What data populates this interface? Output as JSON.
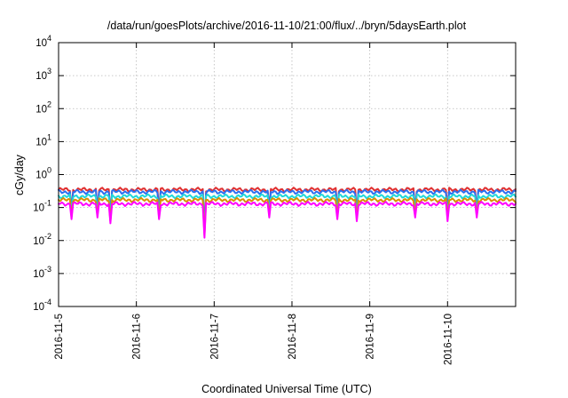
{
  "chart_data": {
    "type": "line",
    "title": "/data/run/goesPlots/archive/2016-11-10/21:00/flux/../bryn/5daysEarth.plot",
    "xlabel": "Coordinated Universal Time (UTC)",
    "ylabel": "cGy/day",
    "yscale": "log",
    "ylim": [
      0.0001,
      10000
    ],
    "y_ticks": [
      {
        "base": "10",
        "exp": "-4",
        "value": 0.0001
      },
      {
        "base": "10",
        "exp": "-3",
        "value": 0.001
      },
      {
        "base": "10",
        "exp": "-2",
        "value": 0.01
      },
      {
        "base": "10",
        "exp": "-1",
        "value": 0.1
      },
      {
        "base": "10",
        "exp": "0",
        "value": 1
      },
      {
        "base": "10",
        "exp": "1",
        "value": 10
      },
      {
        "base": "10",
        "exp": "2",
        "value": 100
      },
      {
        "base": "10",
        "exp": "3",
        "value": 1000
      },
      {
        "base": "10",
        "exp": "4",
        "value": 10000
      }
    ],
    "xlim": [
      "2016-11-05",
      "2016-11-10T21:00"
    ],
    "x_ticks": [
      "2016-11-5",
      "2016-11-6",
      "2016-11-7",
      "2016-11-8",
      "2016-11-9",
      "2016-11-10"
    ],
    "grid": true,
    "legend": "none",
    "series": [
      {
        "color": "#e03030",
        "base_value": 0.35
      },
      {
        "color": "#2c6ff0",
        "base_value": 0.3
      },
      {
        "color": "#20d8d8",
        "base_value": 0.22
      },
      {
        "color": "#d89000",
        "base_value": 0.17
      },
      {
        "color": "#ff00ff",
        "base_value": 0.13
      }
    ],
    "dips": [
      {
        "time": "2016-11-05T04:00",
        "value": 0.08
      },
      {
        "time": "2016-11-05T12:00",
        "value": 0.09
      },
      {
        "time": "2016-11-05T16:00",
        "value": 0.06
      },
      {
        "time": "2016-11-06T07:00",
        "value": 0.08
      },
      {
        "time": "2016-11-06T21:00",
        "value": 0.022
      },
      {
        "time": "2016-11-07T17:00",
        "value": 0.09
      },
      {
        "time": "2016-11-08T14:00",
        "value": 0.08
      },
      {
        "time": "2016-11-08T20:00",
        "value": 0.07
      },
      {
        "time": "2016-11-09T14:00",
        "value": 0.09
      },
      {
        "time": "2016-11-10T00:00",
        "value": 0.07
      },
      {
        "time": "2016-11-10T09:00",
        "value": 0.09
      }
    ]
  }
}
